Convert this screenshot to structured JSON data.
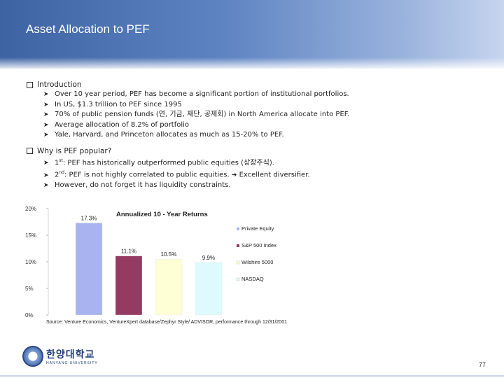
{
  "title": "Asset Allocation to PEF",
  "sections": [
    {
      "heading": "Introduction",
      "bullets": [
        "Over 10 year period, PEF has become a significant portion of institutional portfolios.",
        "In US, $1.3 trillion to PEF since 1995",
        "70% of public pension funds (연, 기금, 재단, 공제회) in North America allocate into PEF.",
        "Average allocation of 8.2% of portfolio",
        "Yale, Harvard, and Princeton allocates as much as 15-20% to PEF."
      ]
    },
    {
      "heading": "Why is PEF popular?",
      "bullets": [
        {
          "prefix": "1",
          "sup": "st",
          "text": ": PEF has historically outperformed public equities (상장주식)."
        },
        {
          "prefix": "2",
          "sup": "nd",
          "text": ": PEF is not highly correlated to public equities.",
          "after": "Excellent diversifier."
        },
        {
          "text": "However, do not forget it has liquidity constraints."
        }
      ]
    }
  ],
  "chart_data": {
    "type": "bar",
    "title": "Annualized 10 - Year Returns",
    "categories": [
      "Private Equity",
      "S&P 500 Index",
      "Wilshire 5000",
      "NASDAQ"
    ],
    "values": [
      17.3,
      11.1,
      10.5,
      9.9
    ],
    "value_labels": [
      "17.3%",
      "11.1%",
      "10.5%",
      "9.9%"
    ],
    "colors": [
      "#a9b4ee",
      "#953a60",
      "#ffffd6",
      "#ddfbff"
    ],
    "ylim": [
      0,
      20
    ],
    "yticks": [
      0,
      5,
      10,
      15,
      20
    ],
    "ytick_labels": [
      "0%",
      "5%",
      "10%",
      "15%",
      "20%"
    ],
    "legend": [
      "Private Equity",
      "S&P 500 Index",
      "Wilshire 5000",
      "NASDAQ"
    ],
    "legend_position": "right",
    "grid": false
  },
  "source": "Source: Venture Economics, VentureXpert database/Zephyr Style/ ADVISOR, performance through 12/31/2001",
  "logo": {
    "korean": "한양대학교",
    "english": "HANYANG UNIVERSITY"
  },
  "page_number": "77"
}
